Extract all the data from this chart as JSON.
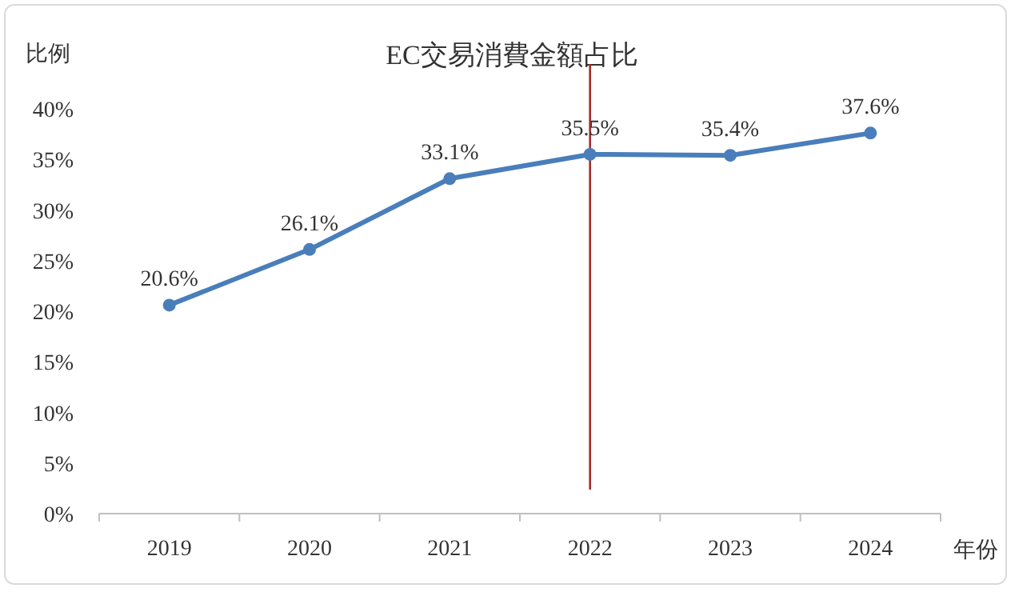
{
  "chart_data": {
    "type": "line",
    "title": "EC交易消費金額占比",
    "ylabel": "比例",
    "xlabel": "年份",
    "categories": [
      "2019",
      "2020",
      "2021",
      "2022",
      "2023",
      "2024"
    ],
    "series": [
      {
        "color": "#4a7ebb",
        "values": [
          20.6,
          26.1,
          33.1,
          35.5,
          35.4,
          37.6
        ]
      }
    ],
    "value_labels": [
      "20.6%",
      "26.1%",
      "33.1%",
      "35.5%",
      "35.4%",
      "37.6%"
    ],
    "ylim": [
      0,
      40
    ],
    "yticks": [
      {
        "value": 0,
        "label": "0%"
      },
      {
        "value": 5,
        "label": "5%"
      },
      {
        "value": 10,
        "label": "10%"
      },
      {
        "value": 15,
        "label": "15%"
      },
      {
        "value": 20,
        "label": "20%"
      },
      {
        "value": 25,
        "label": "25%"
      },
      {
        "value": 30,
        "label": "30%"
      },
      {
        "value": 35,
        "label": "35%"
      },
      {
        "value": 40,
        "label": "40%"
      }
    ],
    "ref_lines": [
      {
        "axis": "x",
        "value": "2022",
        "color": "#a52a2a"
      }
    ],
    "marker": "circle",
    "grid": false
  }
}
